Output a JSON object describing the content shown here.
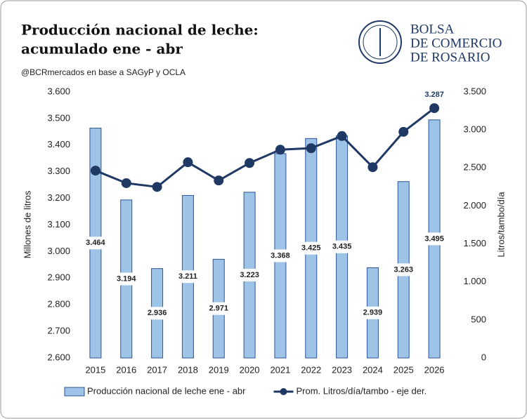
{
  "logo": [
    "BOLSA",
    "DE COMERCIO",
    "DE ROSARIO"
  ],
  "chart_data": {
    "type": "bar-line",
    "title": [
      "Producción nacional de leche:",
      "acumulado ene - abr"
    ],
    "subtitle": "@BCRmercados en base a SAGyP y OCLA",
    "ylabel": "Millones de litros",
    "y2label": "Litros/tambo/día",
    "categories": [
      "2015",
      "2016",
      "2017",
      "2018",
      "2019",
      "2020",
      "2021",
      "2022",
      "2023",
      "2024",
      "2025",
      "2026"
    ],
    "series": [
      {
        "name": "Producción nacional de leche ene - abr",
        "type": "bar",
        "color": "#9dc3e6",
        "edge": "#2f5597",
        "values": [
          3464,
          3194,
          2936,
          3211,
          2971,
          3223,
          3368,
          3425,
          3435,
          2939,
          3263,
          3495
        ],
        "value_labels": [
          "3.464",
          "3.194",
          "2.936",
          "3.211",
          "2.971",
          "3.223",
          "3.368",
          "3.425",
          "3.435",
          "2.939",
          "3.263",
          "3.495"
        ]
      },
      {
        "name": "Prom. Litros/día/tambo - eje der.",
        "type": "line",
        "axis": "y2",
        "color": "#1f3864",
        "values": [
          2465,
          2300,
          2250,
          2575,
          2335,
          2565,
          2740,
          2760,
          2920,
          2510,
          2975,
          3287
        ],
        "value_labels": [
          null,
          null,
          null,
          null,
          null,
          null,
          null,
          null,
          null,
          null,
          null,
          "3.287"
        ]
      }
    ],
    "ylim": [
      2600,
      3600
    ],
    "yticks": [
      {
        "value": 2600,
        "label": "2.600"
      },
      {
        "value": 2700,
        "label": "2.700"
      },
      {
        "value": 2800,
        "label": "2.800"
      },
      {
        "value": 2900,
        "label": "2.900"
      },
      {
        "value": 3000,
        "label": "3.000"
      },
      {
        "value": 3100,
        "label": "3.100"
      },
      {
        "value": 3200,
        "label": "3.200"
      },
      {
        "value": 3300,
        "label": "3.300"
      },
      {
        "value": 3400,
        "label": "3.400"
      },
      {
        "value": 3500,
        "label": "3.500"
      },
      {
        "value": 3600,
        "label": "3.600"
      }
    ],
    "y2lim": [
      0,
      3500
    ],
    "y2ticks": [
      0,
      500,
      {
        "value": 1000,
        "label": "1.000"
      },
      {
        "value": 1500,
        "label": "1.500"
      },
      {
        "value": 2000,
        "label": "2.000"
      },
      {
        "value": 2500,
        "label": "2.500"
      },
      {
        "value": 3000,
        "label": "3.000"
      },
      {
        "value": 3500,
        "label": "3.500"
      }
    ],
    "grid": false,
    "legend": "bottom"
  }
}
